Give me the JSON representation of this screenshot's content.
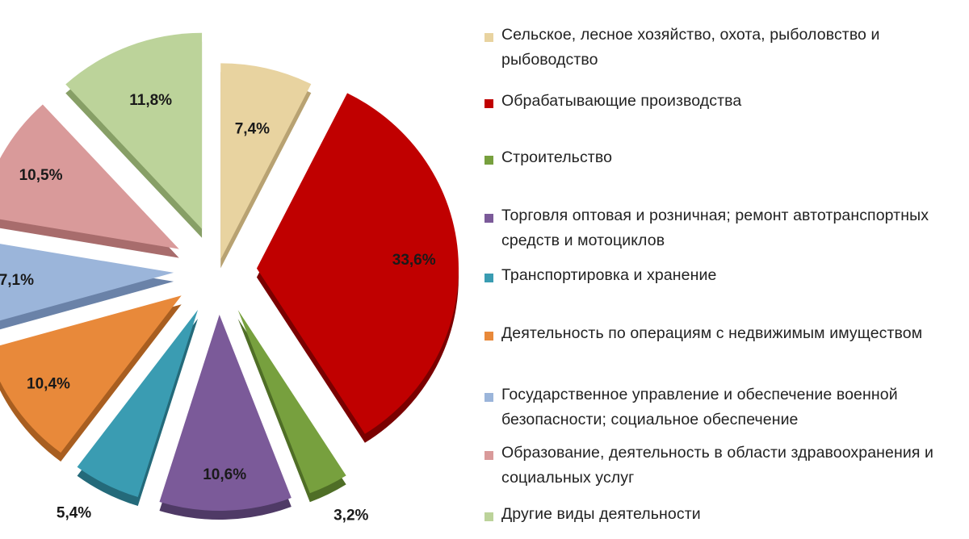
{
  "chart_data": {
    "type": "pie",
    "style": "3d-exploded",
    "legend_position": "right",
    "slices": [
      {
        "name": "Сельское, лесное хозяйство, охота, рыболовство и рыбоводство",
        "value": 7.4,
        "label": "7,4%",
        "color": "#E8D3A0",
        "side_color": "#B8A272"
      },
      {
        "name": "Обрабатывающие производства",
        "value": 33.6,
        "label": "33,6%",
        "color": "#C00000",
        "side_color": "#7A0000"
      },
      {
        "name": "Строительство",
        "value": 3.2,
        "label": "3,2%",
        "color": "#77A03E",
        "side_color": "#4F6E26"
      },
      {
        "name": "Торговля оптовая и розничная; ремонт автотранспортных средств и мотоциклов",
        "value": 10.6,
        "label": "10,6%",
        "color": "#7B5A99",
        "side_color": "#4F3A66"
      },
      {
        "name": "Транспортировка и хранение",
        "value": 5.4,
        "label": "5,4%",
        "color": "#3A9CB2",
        "side_color": "#246A7A"
      },
      {
        "name": "Деятельность по операциям с недвижимым имуществом",
        "value": 10.4,
        "label": "10,4%",
        "color": "#E8893A",
        "side_color": "#A85E20"
      },
      {
        "name": "Государственное управление и обеспечение военной безопасности; социальное обеспечение",
        "value": 7.1,
        "label": "7,1%",
        "color": "#9BB5DA",
        "side_color": "#6A82A8"
      },
      {
        "name": "Образование, деятельность в области здравоохранения и социальных услуг",
        "value": 10.5,
        "label": "10,5%",
        "color": "#D99A9A",
        "side_color": "#A86C6C"
      },
      {
        "name": "Другие виды деятельности",
        "value": 11.8,
        "label": "11,8%",
        "color": "#BCD39A",
        "side_color": "#879F66"
      }
    ]
  },
  "legend": {
    "items": [
      {
        "text": "Сельское, лесное хозяйство, охота, рыболовство и рыбоводство",
        "color": "#E8D3A0"
      },
      {
        "text": "Обрабатывающие производства",
        "color": "#C00000"
      },
      {
        "text": "Строительство",
        "color": "#77A03E"
      },
      {
        "text": "Торговля оптовая и розничная; ремонт автотранспортных средств и мотоциклов",
        "color": "#7B5A99"
      },
      {
        "text": "Транспортировка и хранение",
        "color": "#3A9CB2"
      },
      {
        "text": "Деятельность по операциям с недвижимым имуществом",
        "color": "#E8893A"
      },
      {
        "text": "Государственное управление и обеспечение военной безопасности; социальное обеспечение",
        "color": "#9BB5DA"
      },
      {
        "text": "Образование, деятельность в области здравоохранения и социальных услуг",
        "color": "#D99A9A"
      },
      {
        "text": "Другие виды деятельности",
        "color": "#BCD39A"
      }
    ]
  }
}
